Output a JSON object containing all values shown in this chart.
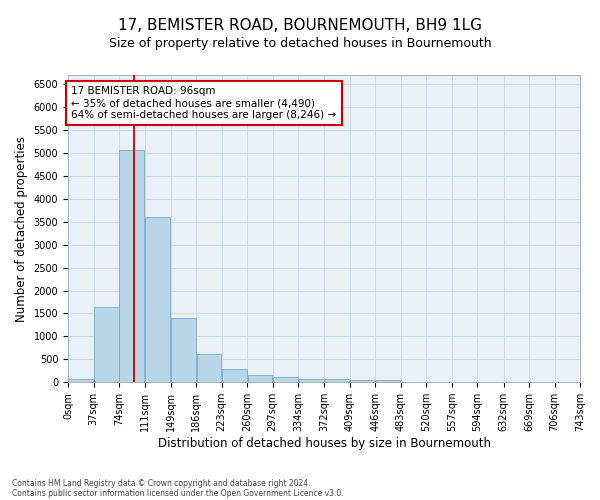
{
  "title": "17, BEMISTER ROAD, BOURNEMOUTH, BH9 1LG",
  "subtitle": "Size of property relative to detached houses in Bournemouth",
  "xlabel": "Distribution of detached houses by size in Bournemouth",
  "ylabel": "Number of detached properties",
  "footnote1": "Contains HM Land Registry data © Crown copyright and database right 2024.",
  "footnote2": "Contains public sector information licensed under the Open Government Licence v3.0.",
  "bar_color": "#bad4e8",
  "bar_edge_color": "#7aaac8",
  "vline_color": "#cc0000",
  "vline_x": 96,
  "annotation_text": "17 BEMISTER ROAD: 96sqm\n← 35% of detached houses are smaller (4,490)\n64% of semi-detached houses are larger (8,246) →",
  "annotation_box_color": "#cc0000",
  "bin_edges": [
    0,
    37,
    74,
    111,
    149,
    186,
    223,
    260,
    297,
    334,
    372,
    409,
    446,
    483,
    520,
    557,
    594,
    632,
    669,
    706,
    743
  ],
  "bin_labels": [
    "0sqm",
    "37sqm",
    "74sqm",
    "111sqm",
    "149sqm",
    "186sqm",
    "223sqm",
    "260sqm",
    "297sqm",
    "334sqm",
    "372sqm",
    "409sqm",
    "446sqm",
    "483sqm",
    "520sqm",
    "557sqm",
    "594sqm",
    "632sqm",
    "669sqm",
    "706sqm",
    "743sqm"
  ],
  "bar_heights": [
    75,
    1650,
    5075,
    3600,
    1400,
    610,
    290,
    155,
    110,
    75,
    60,
    40,
    50,
    0,
    0,
    0,
    0,
    0,
    0,
    0
  ],
  "ylim": [
    0,
    6700
  ],
  "yticks": [
    0,
    500,
    1000,
    1500,
    2000,
    2500,
    3000,
    3500,
    4000,
    4500,
    5000,
    5500,
    6000,
    6500
  ],
  "grid_color": "#ccd9e8",
  "bg_color": "#e8f0f8",
  "title_fontsize": 11,
  "subtitle_fontsize": 9,
  "axis_label_fontsize": 8.5,
  "tick_fontsize": 7,
  "footnote_fontsize": 5.5
}
